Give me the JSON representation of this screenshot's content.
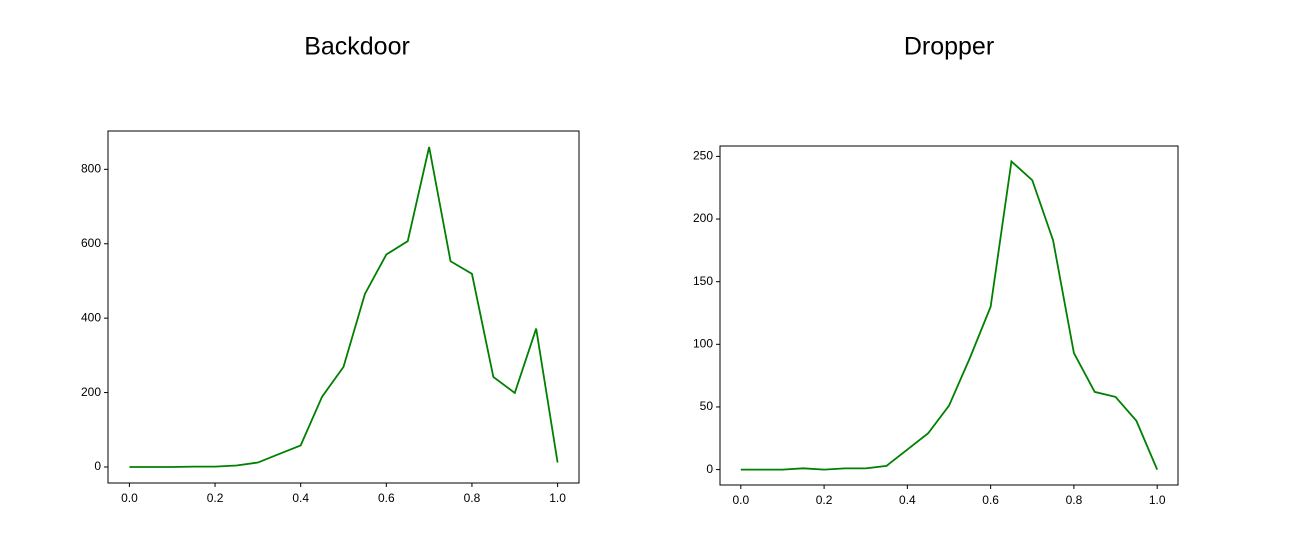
{
  "chart_data": [
    {
      "type": "line",
      "title": "Backdoor",
      "x": [
        0,
        0.05,
        0.1,
        0.15,
        0.2,
        0.25,
        0.3,
        0.35,
        0.4,
        0.45,
        0.5,
        0.55,
        0.6,
        0.65,
        0.7,
        0.75,
        0.8,
        0.85,
        0.9,
        0.95,
        1
      ],
      "series": [
        {
          "color": "#008000",
          "values": [
            0,
            0,
            0,
            1,
            1,
            4,
            12,
            35,
            58,
            189,
            269,
            465,
            571,
            607,
            860,
            553,
            519,
            242,
            199,
            372,
            12
          ]
        }
      ],
      "xlim": [
        -0.05,
        1.05
      ],
      "ylim": [
        -43,
        903
      ],
      "xticks": [
        {
          "value": 0,
          "label": "0.0"
        },
        0.2,
        0.4,
        0.6,
        0.8,
        {
          "value": 1,
          "label": "1.0"
        }
      ],
      "yticks": [
        0,
        200,
        400,
        600,
        800
      ]
    },
    {
      "type": "line",
      "title": "Dropper",
      "x": [
        0,
        0.05,
        0.1,
        0.15,
        0.2,
        0.25,
        0.3,
        0.35,
        0.4,
        0.45,
        0.5,
        0.55,
        0.6,
        0.65,
        0.7,
        0.75,
        0.8,
        0.85,
        0.9,
        0.95,
        1
      ],
      "series": [
        {
          "color": "#008000",
          "values": [
            0,
            0,
            0,
            1,
            0,
            1,
            1,
            3,
            16,
            29,
            51,
            89,
            130,
            246,
            231,
            183,
            93,
            62,
            58,
            39,
            0
          ]
        }
      ],
      "xlim": [
        -0.05,
        1.05
      ],
      "ylim": [
        -12.3,
        258.3
      ],
      "xticks": [
        {
          "value": 0,
          "label": "0.0"
        },
        0.2,
        0.4,
        0.6,
        0.8,
        {
          "value": 1,
          "label": "1.0"
        }
      ],
      "yticks": [
        0,
        50,
        100,
        150,
        200,
        250
      ]
    }
  ]
}
